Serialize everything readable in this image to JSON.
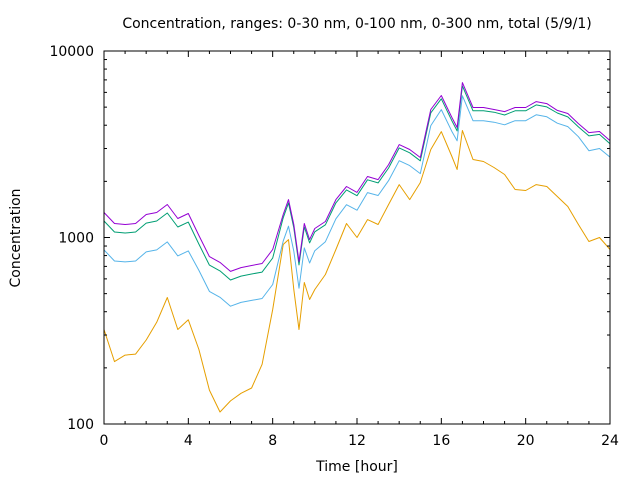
{
  "chart_data": {
    "type": "line",
    "title": "Concentration, ranges: 0-30 nm, 0-100 nm, 0-300 nm, total (5/9/1)",
    "xlabel": "Time [hour]",
    "ylabel": "Concentration",
    "xlim": [
      0,
      24
    ],
    "ylim": [
      100,
      10000
    ],
    "yscale": "log",
    "x_ticks": [
      0,
      4,
      8,
      12,
      16,
      20,
      24
    ],
    "y_ticks": [
      100,
      1000,
      10000
    ],
    "y_tick_labels": [
      "100",
      "1000",
      "10000"
    ],
    "grid": false,
    "x": [
      0,
      0.5,
      1,
      1.5,
      2,
      2.5,
      3,
      3.5,
      4,
      4.5,
      5,
      5.5,
      6,
      6.5,
      7,
      7.5,
      8,
      8.5,
      8.75,
      9,
      9.25,
      9.5,
      9.75,
      10,
      10.5,
      11,
      11.5,
      12,
      12.5,
      13,
      13.5,
      14,
      14.5,
      15,
      15.5,
      16,
      16.5,
      16.75,
      17,
      17.5,
      18,
      18.5,
      19,
      19.5,
      20,
      20.5,
      21,
      21.5,
      22,
      22.5,
      23,
      23.5,
      24
    ],
    "series": [
      {
        "name": "total",
        "color": "#9400d3",
        "values": [
          1362,
          1188,
          1174,
          1188,
          1328,
          1362,
          1503,
          1265,
          1345,
          1025,
          790,
          735,
          658,
          690,
          708,
          725,
          862,
          1328,
          1597,
          1174,
          743,
          1188,
          975,
          1118,
          1218,
          1597,
          1877,
          1745,
          2123,
          2045,
          2460,
          3150,
          2964,
          2684,
          4859,
          5770,
          4400,
          3887,
          6770,
          4980,
          4980,
          4859,
          4730,
          4980,
          4980,
          5355,
          5225,
          4800,
          4620,
          4083,
          3653,
          3700,
          3310
        ]
      },
      {
        "name": "0-300 nm",
        "color": "#009e73",
        "values": [
          1226,
          1070,
          1057,
          1070,
          1195,
          1226,
          1353,
          1138,
          1210,
          922,
          711,
          662,
          592,
          621,
          637,
          652,
          776,
          1275,
          1533,
          1127,
          713,
          1140,
          936,
          1073,
          1170,
          1533,
          1800,
          1675,
          2040,
          1963,
          2360,
          3024,
          2845,
          2577,
          4665,
          5540,
          4224,
          3730,
          6500,
          4780,
          4780,
          4700,
          4540,
          4780,
          4780,
          5140,
          5016,
          4650,
          4435,
          3920,
          3507,
          3570,
          3180
        ]
      },
      {
        "name": "0-100 nm",
        "color": "#56b4e9",
        "values": [
          858,
          748,
          740,
          748,
          837,
          858,
          947,
          797,
          847,
          666,
          514,
          478,
          428,
          449,
          460,
          471,
          560,
          956,
          1150,
          845,
          535,
          880,
          730,
          850,
          950,
          1260,
          1500,
          1400,
          1740,
          1680,
          2020,
          2580,
          2430,
          2200,
          3980,
          4850,
          3700,
          3300,
          5750,
          4230,
          4230,
          4150,
          4020,
          4230,
          4230,
          4550,
          4440,
          4100,
          3930,
          3470,
          2920,
          3000,
          2700
        ]
      },
      {
        "name": "0-30 nm",
        "color": "#e69f00",
        "values": [
          321,
          216,
          234,
          237,
          282,
          351,
          477,
          321,
          362,
          251,
          152,
          116,
          133,
          146,
          156,
          209,
          411,
          917,
          975,
          526,
          321,
          574,
          465,
          526,
          633,
          862,
          1188,
          1000,
          1248,
          1174,
          1503,
          1922,
          1597,
          1970,
          2964,
          3699,
          2718,
          2316,
          3746,
          2621,
          2555,
          2373,
          2177,
          1808,
          1786,
          1922,
          1877,
          1658,
          1466,
          1174,
          952,
          1000,
          862
        ]
      }
    ]
  }
}
